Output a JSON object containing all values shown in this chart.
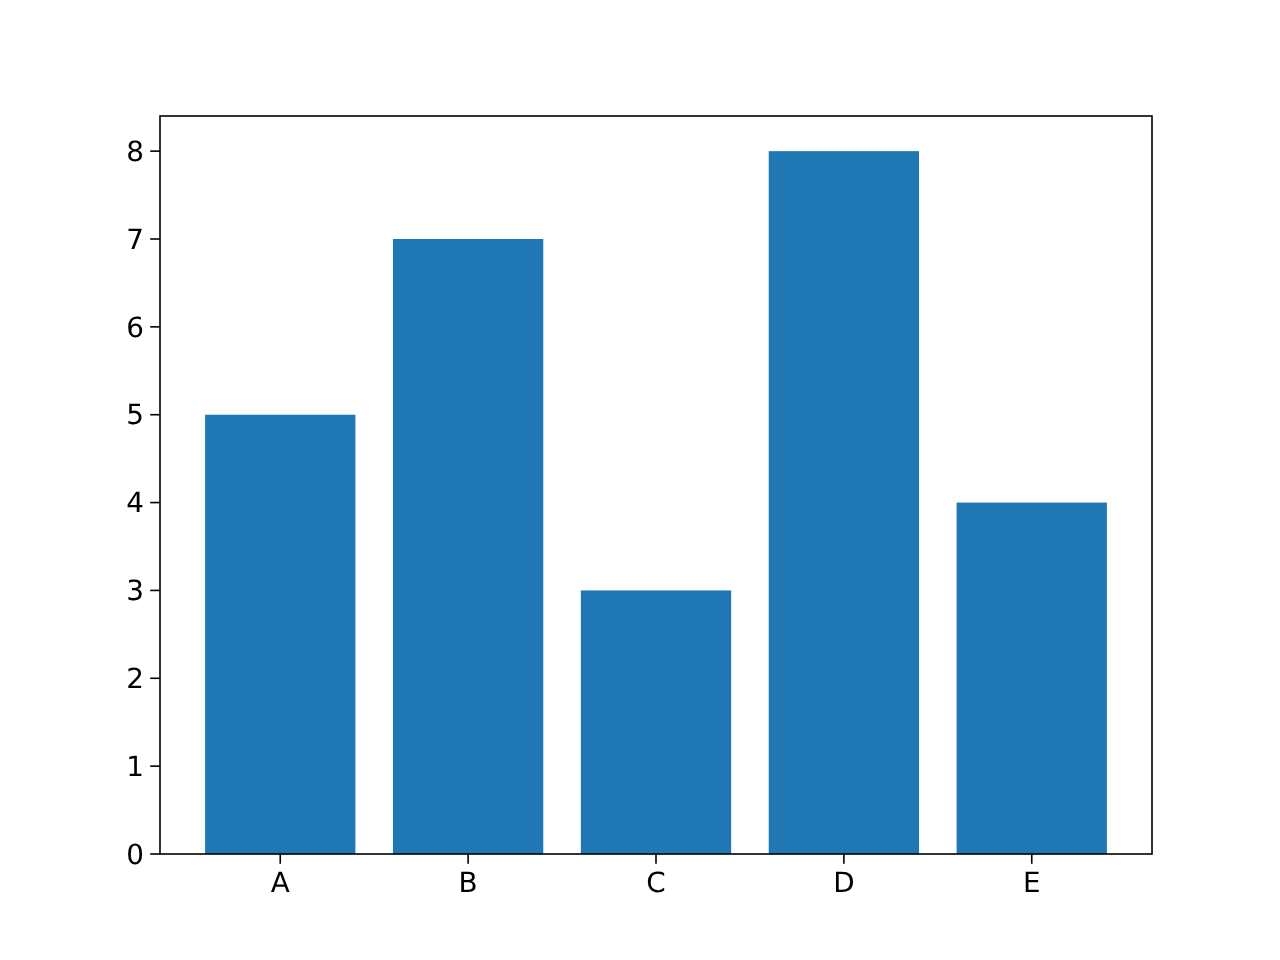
{
  "chart_data": {
    "type": "bar",
    "categories": [
      "A",
      "B",
      "C",
      "D",
      "E"
    ],
    "values": [
      5,
      7,
      3,
      8,
      4
    ],
    "color": "#1f77b4",
    "ylim": [
      0,
      8.4
    ],
    "yticks": [
      0,
      1,
      2,
      3,
      4,
      5,
      6,
      7,
      8
    ]
  }
}
